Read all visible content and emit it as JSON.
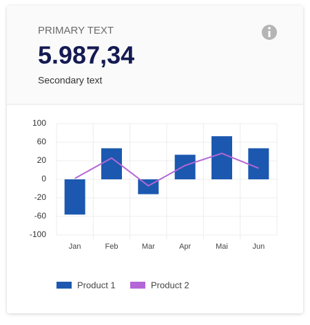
{
  "header": {
    "title": "PRIMARY TEXT",
    "value": "5.987,34",
    "subtitle": "Secondary text"
  },
  "chart_data": {
    "type": "bar",
    "categories": [
      "Jan",
      "Feb",
      "Mar",
      "Apr",
      "Mai",
      "Jun"
    ],
    "series": [
      {
        "name": "Product 1",
        "type": "bar",
        "color": "#1c58b0",
        "values": [
          -56,
          47,
          -16,
          33,
          73,
          47
        ]
      },
      {
        "name": "Product 2",
        "type": "line",
        "color": "#b466d6",
        "values": [
          1,
          26,
          -7,
          15,
          36,
          12
        ]
      }
    ],
    "ylim": [
      -100,
      100
    ],
    "yticks": [
      100,
      60,
      20,
      0,
      -20,
      -60,
      -100
    ],
    "grid": true,
    "legend": "bottom"
  }
}
